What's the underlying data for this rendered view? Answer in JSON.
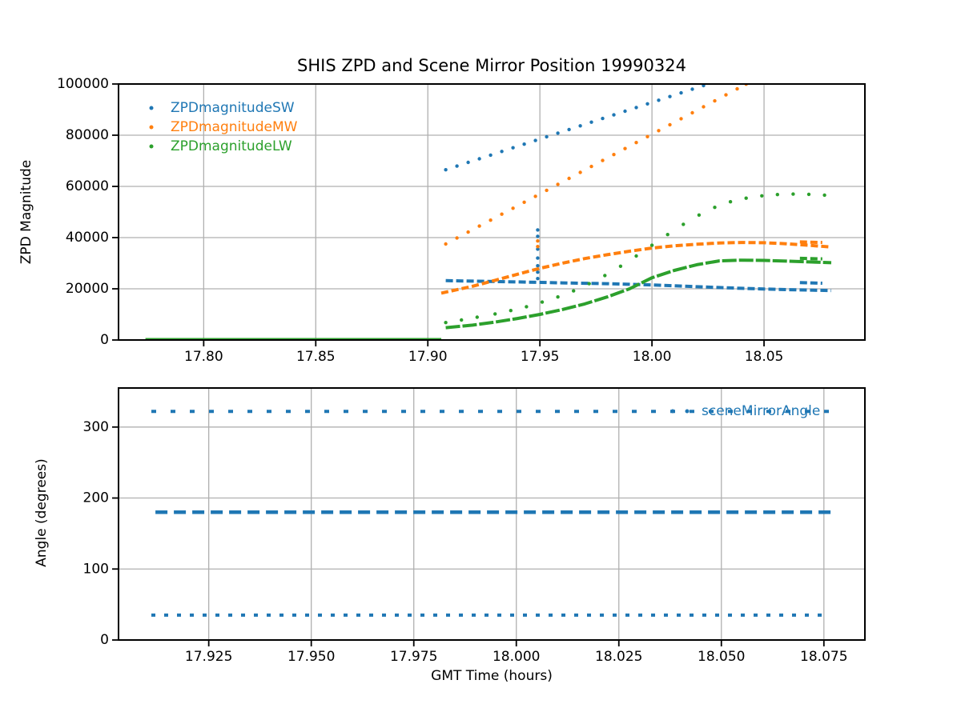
{
  "colors": {
    "blue": "#1f77b4",
    "orange": "#ff7f0e",
    "green": "#2ca02c",
    "grid": "#b0b0b0",
    "spine": "#000000",
    "text": "#000000",
    "background": "#ffffff"
  },
  "chart_data": [
    {
      "type": "scatter",
      "title": "SHIS ZPD and Scene Mirror Position 19990324",
      "xlabel": "",
      "ylabel": "ZPD Magnitude",
      "xlim": [
        17.762,
        18.095
      ],
      "ylim": [
        0,
        100000
      ],
      "xticks": [
        "17.80",
        "17.85",
        "17.90",
        "17.95",
        "18.00",
        "18.05"
      ],
      "xtick_values": [
        17.8,
        17.85,
        17.9,
        17.95,
        18.0,
        18.05
      ],
      "yticks": [
        "0",
        "20000",
        "40000",
        "60000",
        "80000",
        "100000"
      ],
      "ytick_values": [
        0,
        20000,
        40000,
        60000,
        80000,
        100000
      ],
      "grid": true,
      "legend": {
        "location": "upper left",
        "entries": [
          {
            "label": "ZPDmagnitudeSW",
            "color": "#1f77b4"
          },
          {
            "label": "ZPDmagnitudeMW",
            "color": "#ff7f0e"
          },
          {
            "label": "ZPDmagnitudeLW",
            "color": "#2ca02c"
          }
        ]
      },
      "series": [
        {
          "name": "ZPDmagnitudeSW",
          "color": "#1f77b4",
          "segments": [
            {
              "style": "dash",
              "points": [
                [
                  17.908,
                  23200
                ],
                [
                  17.92,
                  23000
                ],
                [
                  17.93,
                  22850
                ],
                [
                  17.94,
                  22700
                ],
                [
                  17.95,
                  22500
                ],
                [
                  17.96,
                  22300
                ],
                [
                  17.97,
                  22150
                ],
                [
                  17.98,
                  22000
                ],
                [
                  17.99,
                  21750
                ],
                [
                  18.0,
                  21500
                ],
                [
                  18.01,
                  21200
                ],
                [
                  18.02,
                  20800
                ],
                [
                  18.03,
                  20500
                ],
                [
                  18.04,
                  20200
                ],
                [
                  18.05,
                  19900
                ],
                [
                  18.06,
                  19700
                ],
                [
                  18.07,
                  19500
                ],
                [
                  18.08,
                  19300
                ]
              ]
            },
            {
              "style": "dots",
              "points": [
                [
                  17.908,
                  66500
                ],
                [
                  17.913,
                  67930
                ],
                [
                  17.918,
                  69360
                ],
                [
                  17.923,
                  70790
                ],
                [
                  17.928,
                  72220
                ],
                [
                  17.933,
                  73650
                ],
                [
                  17.938,
                  75080
                ],
                [
                  17.943,
                  76510
                ],
                [
                  17.948,
                  77940
                ],
                [
                  17.953,
                  79370
                ],
                [
                  17.958,
                  80800
                ],
                [
                  17.963,
                  82230
                ],
                [
                  17.968,
                  83660
                ],
                [
                  17.973,
                  85090
                ],
                [
                  17.978,
                  86520
                ],
                [
                  17.983,
                  87950
                ],
                [
                  17.988,
                  89380
                ],
                [
                  17.993,
                  90810
                ],
                [
                  17.998,
                  92240
                ],
                [
                  18.003,
                  93670
                ],
                [
                  18.008,
                  95100
                ],
                [
                  18.013,
                  96530
                ],
                [
                  18.018,
                  97960
                ],
                [
                  18.023,
                  99390
                ]
              ]
            },
            {
              "style": "dots",
              "points": [
                [
                  17.949,
                  24000
                ],
                [
                  17.949,
                  26500
                ],
                [
                  17.949,
                  29000
                ],
                [
                  17.949,
                  32000
                ],
                [
                  17.949,
                  35500
                ],
                [
                  17.949,
                  40500
                ],
                [
                  17.949,
                  43000
                ]
              ]
            },
            {
              "style": "dash",
              "points": [
                [
                  18.066,
                  22400
                ],
                [
                  18.076,
                  22200
                ]
              ]
            }
          ]
        },
        {
          "name": "ZPDmagnitudeMW",
          "color": "#ff7f0e",
          "segments": [
            {
              "style": "dash",
              "points": [
                [
                  17.906,
                  18300
                ],
                [
                  17.92,
                  21000
                ],
                [
                  17.93,
                  23300
                ],
                [
                  17.94,
                  25700
                ],
                [
                  17.95,
                  28000
                ],
                [
                  17.96,
                  30000
                ],
                [
                  17.97,
                  31800
                ],
                [
                  17.98,
                  33300
                ],
                [
                  17.99,
                  34700
                ],
                [
                  18.0,
                  35900
                ],
                [
                  18.01,
                  36800
                ],
                [
                  18.02,
                  37400
                ],
                [
                  18.03,
                  37900
                ],
                [
                  18.04,
                  38100
                ],
                [
                  18.05,
                  38000
                ],
                [
                  18.06,
                  37600
                ],
                [
                  18.07,
                  37000
                ],
                [
                  18.08,
                  36300
                ]
              ]
            },
            {
              "style": "dots",
              "points": [
                [
                  17.908,
                  37500
                ],
                [
                  17.913,
                  39830
                ],
                [
                  17.918,
                  42160
                ],
                [
                  17.923,
                  44490
                ],
                [
                  17.928,
                  46820
                ],
                [
                  17.933,
                  49150
                ],
                [
                  17.938,
                  51480
                ],
                [
                  17.943,
                  53810
                ],
                [
                  17.948,
                  56140
                ],
                [
                  17.953,
                  58470
                ],
                [
                  17.958,
                  60800
                ],
                [
                  17.963,
                  63130
                ],
                [
                  17.968,
                  65460
                ],
                [
                  17.973,
                  67790
                ],
                [
                  17.978,
                  70120
                ],
                [
                  17.983,
                  72450
                ],
                [
                  17.988,
                  74780
                ],
                [
                  17.993,
                  77110
                ],
                [
                  17.998,
                  79440
                ],
                [
                  18.003,
                  81770
                ],
                [
                  18.008,
                  84100
                ],
                [
                  18.013,
                  86430
                ],
                [
                  18.018,
                  88760
                ],
                [
                  18.023,
                  91090
                ],
                [
                  18.028,
                  93420
                ],
                [
                  18.033,
                  95750
                ],
                [
                  18.038,
                  98080
                ],
                [
                  18.042,
                  99940
                ]
              ]
            },
            {
              "style": "dots",
              "points": [
                [
                  17.949,
                  36500
                ],
                [
                  17.949,
                  38700
                ]
              ]
            },
            {
              "style": "dash",
              "points": [
                [
                  18.066,
                  38300
                ],
                [
                  18.076,
                  38100
                ]
              ]
            }
          ]
        },
        {
          "name": "ZPDmagnitudeLW",
          "color": "#2ca02c",
          "segments": [
            {
              "style": "line",
              "points": [
                [
                  17.774,
                  400
                ],
                [
                  17.906,
                  400
                ]
              ]
            },
            {
              "style": "dash-dense",
              "points": [
                [
                  17.908,
                  4800
                ],
                [
                  17.92,
                  5800
                ],
                [
                  17.93,
                  7000
                ],
                [
                  17.94,
                  8400
                ],
                [
                  17.95,
                  10000
                ],
                [
                  17.96,
                  11900
                ],
                [
                  17.97,
                  14100
                ],
                [
                  17.98,
                  16800
                ],
                [
                  17.99,
                  20000
                ],
                [
                  18.0,
                  24300
                ],
                [
                  18.01,
                  27200
                ],
                [
                  18.02,
                  29400
                ],
                [
                  18.03,
                  30900
                ],
                [
                  18.04,
                  31200
                ],
                [
                  18.05,
                  31100
                ],
                [
                  18.06,
                  30800
                ],
                [
                  18.07,
                  30500
                ],
                [
                  18.08,
                  30200
                ]
              ]
            },
            {
              "style": "dots",
              "points": [
                [
                  17.908,
                  6800
                ],
                [
                  17.915,
                  7800
                ],
                [
                  17.922,
                  8900
                ],
                [
                  17.93,
                  10200
                ],
                [
                  17.937,
                  11500
                ],
                [
                  17.944,
                  13000
                ],
                [
                  17.951,
                  14800
                ],
                [
                  17.958,
                  16800
                ],
                [
                  17.965,
                  19200
                ],
                [
                  17.972,
                  22000
                ],
                [
                  17.979,
                  25200
                ],
                [
                  17.986,
                  28800
                ],
                [
                  17.993,
                  32800
                ],
                [
                  18.0,
                  37000
                ],
                [
                  18.007,
                  41200
                ],
                [
                  18.014,
                  45200
                ],
                [
                  18.021,
                  48800
                ],
                [
                  18.028,
                  51800
                ],
                [
                  18.035,
                  54000
                ],
                [
                  18.042,
                  55400
                ],
                [
                  18.049,
                  56300
                ],
                [
                  18.056,
                  56800
                ],
                [
                  18.063,
                  57000
                ],
                [
                  18.07,
                  56900
                ],
                [
                  18.077,
                  56600
                ]
              ]
            },
            {
              "style": "dash",
              "points": [
                [
                  18.066,
                  31900
                ],
                [
                  18.076,
                  31700
                ]
              ]
            }
          ]
        }
      ]
    },
    {
      "type": "scatter",
      "title": "",
      "xlabel": "GMT Time (hours)",
      "ylabel": "Angle (degrees)",
      "xlim": [
        17.903,
        18.085
      ],
      "ylim": [
        0,
        355
      ],
      "xticks": [
        "17.925",
        "17.950",
        "17.975",
        "18.000",
        "18.025",
        "18.050",
        "18.075"
      ],
      "xtick_values": [
        17.925,
        17.95,
        17.975,
        18.0,
        18.025,
        18.05,
        18.075
      ],
      "yticks": [
        "0",
        "100",
        "200",
        "300"
      ],
      "ytick_values": [
        0,
        100,
        200,
        300
      ],
      "grid": true,
      "legend": {
        "location": "upper right",
        "entries": [
          {
            "label": "sceneMirrorAngle",
            "color": "#1f77b4"
          }
        ]
      },
      "series": [
        {
          "name": "sceneMirrorAngle",
          "color": "#1f77b4",
          "segments": [
            {
              "style": "dots-sparse",
              "y": 322,
              "x_start": 17.911,
              "x_end": 18.077
            },
            {
              "style": "dash-wide",
              "y": 180,
              "x_start": 17.912,
              "x_end": 18.078
            },
            {
              "style": "dots-med",
              "y": 35,
              "x_start": 17.911,
              "x_end": 18.076
            }
          ]
        }
      ]
    }
  ]
}
